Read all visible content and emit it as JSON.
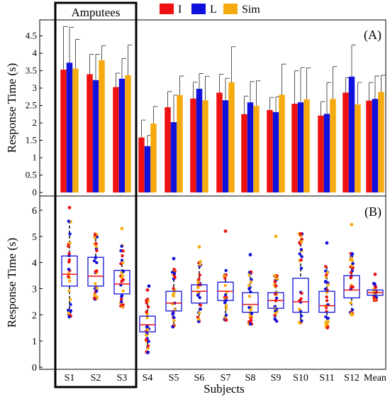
{
  "chart_data": [
    {
      "panel": "(A)",
      "type": "bar",
      "ylabel": "Response Time (s)",
      "ylim": [
        0,
        4.9
      ],
      "yticks": [
        "0",
        "0.5",
        "1",
        "1.5",
        "2",
        "2.5",
        "3",
        "3.5",
        "4",
        "4.5"
      ],
      "categories": [
        "S1",
        "S2",
        "S3",
        "S4",
        "S5",
        "S6",
        "S7",
        "S8",
        "S9",
        "S10",
        "S11",
        "S12",
        "Mean"
      ],
      "grid": false,
      "legend_position": "top-center",
      "group_annotation": "Amputees",
      "series": [
        {
          "name": "I",
          "color": "#ee1111",
          "values": [
            3.53,
            3.4,
            3.03,
            1.58,
            2.45,
            2.7,
            2.87,
            2.25,
            2.37,
            2.55,
            2.21,
            2.87,
            2.64
          ],
          "errors": [
            1.24,
            0.57,
            0.4,
            0.5,
            0.45,
            0.47,
            0.53,
            0.52,
            0.36,
            0.95,
            0.4,
            0.43,
            0.52
          ]
        },
        {
          "name": "L",
          "color": "#1111dd",
          "values": [
            3.73,
            3.23,
            3.27,
            1.33,
            2.02,
            2.98,
            2.65,
            2.59,
            2.31,
            2.59,
            2.26,
            3.33,
            2.69
          ],
          "errors": [
            1.02,
            0.74,
            0.58,
            0.31,
            0.78,
            0.44,
            0.63,
            0.6,
            0.44,
            1.0,
            0.9,
            0.91,
            0.66
          ]
        },
        {
          "name": "Sim",
          "color": "#f5ab10",
          "values": [
            3.56,
            3.8,
            3.37,
            1.98,
            2.8,
            2.65,
            3.17,
            2.49,
            2.81,
            2.68,
            2.69,
            2.53,
            2.89
          ],
          "errors": [
            0.84,
            0.42,
            0.87,
            0.49,
            0.55,
            0.69,
            1.02,
            0.72,
            0.88,
            0.9,
            0.93,
            0.63,
            0.48
          ]
        }
      ]
    },
    {
      "panel": "(B)",
      "type": "box",
      "xlabel": "Subjects",
      "ylabel": "Response Time (s)",
      "ylim": [
        0,
        6.5
      ],
      "yticks": [
        "0",
        "1",
        "2",
        "3",
        "4",
        "5",
        "6"
      ],
      "categories": [
        "S1",
        "S2",
        "S3",
        "S4",
        "S5",
        "S6",
        "S7",
        "S8",
        "S9",
        "S10",
        "S11",
        "S12",
        "Mean"
      ],
      "boxes": [
        {
          "q1": 3.1,
          "median": 3.55,
          "q3": 4.25,
          "lo": 1.9,
          "hi": 5.6
        },
        {
          "q1": 3.1,
          "median": 3.48,
          "q3": 4.2,
          "lo": 2.6,
          "hi": 5.1
        },
        {
          "q1": 2.8,
          "median": 3.18,
          "q3": 3.7,
          "lo": 2.3,
          "hi": 4.7
        },
        {
          "q1": 1.35,
          "median": 1.62,
          "q3": 1.95,
          "lo": 0.55,
          "hi": 2.6
        },
        {
          "q1": 2.15,
          "median": 2.45,
          "q3": 2.9,
          "lo": 1.5,
          "hi": 3.75
        },
        {
          "q1": 2.45,
          "median": 2.9,
          "q3": 3.15,
          "lo": 1.75,
          "hi": 4.05
        },
        {
          "q1": 2.55,
          "median": 2.9,
          "q3": 3.25,
          "lo": 1.8,
          "hi": 3.75
        },
        {
          "q1": 2.1,
          "median": 2.4,
          "q3": 2.85,
          "lo": 1.65,
          "hi": 3.65
        },
        {
          "q1": 2.25,
          "median": 2.55,
          "q3": 2.85,
          "lo": 1.75,
          "hi": 3.5
        },
        {
          "q1": 2.1,
          "median": 2.5,
          "q3": 3.4,
          "lo": 1.65,
          "hi": 5.1
        },
        {
          "q1": 2.1,
          "median": 2.35,
          "q3": 2.9,
          "lo": 1.45,
          "hi": 3.85
        },
        {
          "q1": 2.65,
          "median": 2.95,
          "q3": 3.5,
          "lo": 2.0,
          "hi": 4.35
        },
        {
          "q1": 2.75,
          "median": 2.85,
          "q3": 2.95,
          "lo": 2.55,
          "hi": 3.2
        }
      ],
      "outliers": [
        [
          6.1
        ],
        [],
        [
          5.3
        ],
        [
          2.95,
          3.1
        ],
        [
          4.15
        ],
        [
          4.6
        ],
        [
          5.2
        ],
        [
          4.3
        ],
        [
          5.0
        ],
        [
          5.1
        ],
        [
          4.75
        ],
        [
          5.45
        ],
        [
          3.55
        ]
      ]
    }
  ]
}
